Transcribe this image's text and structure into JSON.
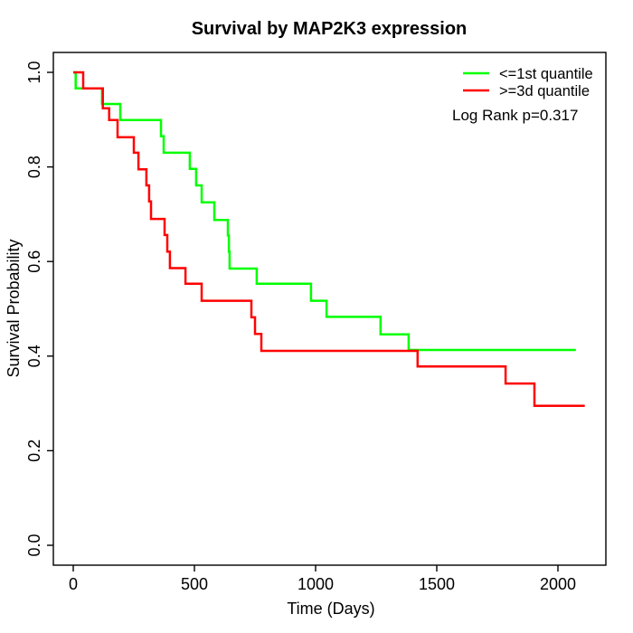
{
  "chart_data": {
    "type": "line",
    "subtype": "kaplan-meier-step",
    "title": "Survival by MAP2K3 expression",
    "xlabel": "Time (Days)",
    "ylabel": "Survival Probability",
    "xlim": [
      0,
      2200
    ],
    "ylim": [
      0,
      1
    ],
    "grid": false,
    "xticks": [
      0,
      500,
      1000,
      1500,
      2000
    ],
    "xtick_labels": [
      "0",
      "500",
      "1000",
      "1500",
      "2000"
    ],
    "yticks": [
      0.0,
      0.2,
      0.4,
      0.6,
      0.8,
      1.0
    ],
    "ytick_labels": [
      "0.0",
      "0.2",
      "0.4",
      "0.6",
      "0.8",
      "1.0"
    ],
    "legend_position": "top-right",
    "annotation": "Log Rank p=0.317",
    "axis_color": "#000000",
    "series": [
      {
        "name": "<=1st quantile",
        "color": "#00FF00",
        "step": "post",
        "points": [
          [
            0,
            1.0
          ],
          [
            10,
            0.966
          ],
          [
            119,
            0.933
          ],
          [
            194,
            0.899
          ],
          [
            362,
            0.865
          ],
          [
            373,
            0.83
          ],
          [
            481,
            0.796
          ],
          [
            507,
            0.761
          ],
          [
            530,
            0.725
          ],
          [
            582,
            0.688
          ],
          [
            638,
            0.655
          ],
          [
            642,
            0.621
          ],
          [
            645,
            0.585
          ],
          [
            757,
            0.553
          ],
          [
            981,
            0.517
          ],
          [
            1045,
            0.483
          ],
          [
            1268,
            0.446
          ],
          [
            1384,
            0.413
          ],
          [
            2074,
            0.413
          ]
        ]
      },
      {
        "name": ">=3d quantile",
        "color": "#FF0000",
        "step": "post",
        "points": [
          [
            0,
            1.0
          ],
          [
            41,
            0.966
          ],
          [
            122,
            0.924
          ],
          [
            148,
            0.899
          ],
          [
            183,
            0.863
          ],
          [
            250,
            0.83
          ],
          [
            269,
            0.795
          ],
          [
            302,
            0.761
          ],
          [
            313,
            0.727
          ],
          [
            321,
            0.69
          ],
          [
            377,
            0.656
          ],
          [
            388,
            0.621
          ],
          [
            399,
            0.586
          ],
          [
            463,
            0.553
          ],
          [
            530,
            0.517
          ],
          [
            735,
            0.482
          ],
          [
            750,
            0.447
          ],
          [
            776,
            0.411
          ],
          [
            1421,
            0.378
          ],
          [
            1784,
            0.342
          ],
          [
            1903,
            0.295
          ],
          [
            2111,
            0.295
          ]
        ]
      }
    ]
  },
  "colors": {
    "background": "#FFFFFF",
    "text": "#000000",
    "box": "#000000"
  }
}
